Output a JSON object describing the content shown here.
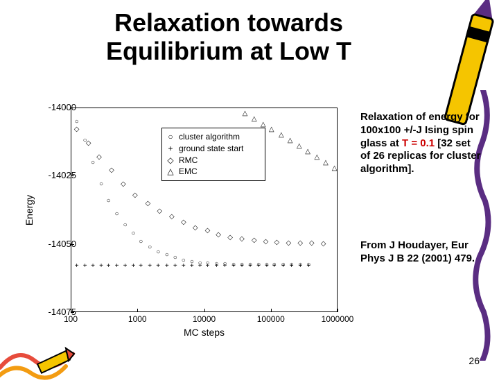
{
  "title": "Relaxation towards Equilibrium at Low T",
  "caption_parts": {
    "p1": "Relaxation of energy for 100x100 +/-J Ising spin glass at ",
    "hl": "T = 0.1",
    "p2": " [32 set of 26 replicas for cluster algorithm]."
  },
  "citation": "From J Houdayer, Eur Phys J B 22 (2001) 479.",
  "pagenum": "26",
  "chart": {
    "type": "scatter",
    "xlabel": "MC steps",
    "ylabel": "Energy",
    "x_scale": "log",
    "xlim": [
      100,
      1000000
    ],
    "ylim": [
      -14075,
      -14000
    ],
    "xticks": [
      100,
      1000,
      10000,
      100000,
      1000000
    ],
    "xtick_labels": [
      "100",
      "1000",
      "10000",
      "100000",
      "1000000"
    ],
    "yticks": [
      -14000,
      -14025,
      -14050,
      -14075
    ],
    "ytick_labels": [
      "-14000",
      "-14025",
      "-14050",
      "-14075"
    ],
    "background_color": "#ffffff",
    "axis_color": "#000000",
    "legend": {
      "position": "upper-center",
      "items": [
        {
          "symbol": "○",
          "label": "cluster algorithm"
        },
        {
          "symbol": "+",
          "label": "ground state start"
        },
        {
          "symbol": "◇",
          "label": "RMC"
        },
        {
          "symbol": "△",
          "label": "EMC"
        }
      ]
    },
    "series": [
      {
        "name": "cluster",
        "marker": "○",
        "points": [
          [
            120,
            -14005
          ],
          [
            160,
            -14012
          ],
          [
            210,
            -14020
          ],
          [
            280,
            -14028
          ],
          [
            360,
            -14034
          ],
          [
            480,
            -14039
          ],
          [
            640,
            -14043
          ],
          [
            850,
            -14046
          ],
          [
            1100,
            -14049
          ],
          [
            1500,
            -14051
          ],
          [
            2000,
            -14053
          ],
          [
            2700,
            -14054
          ],
          [
            3600,
            -14055
          ],
          [
            4800,
            -14056
          ],
          [
            6400,
            -14056.5
          ],
          [
            8500,
            -14057
          ],
          [
            11000,
            -14057
          ],
          [
            15000,
            -14057.2
          ],
          [
            20000,
            -14057.3
          ],
          [
            27000,
            -14057.4
          ],
          [
            36000,
            -14057.4
          ],
          [
            48000,
            -14057.5
          ],
          [
            64000,
            -14057.5
          ],
          [
            85000,
            -14057.5
          ],
          [
            110000,
            -14057.5
          ],
          [
            150000,
            -14057.5
          ],
          [
            200000,
            -14057.5
          ],
          [
            270000,
            -14057.5
          ],
          [
            360000,
            -14057.5
          ]
        ]
      },
      {
        "name": "ground_state_start",
        "marker": "+",
        "points": [
          [
            120,
            -14058
          ],
          [
            160,
            -14058
          ],
          [
            210,
            -14058
          ],
          [
            280,
            -14058
          ],
          [
            360,
            -14058
          ],
          [
            480,
            -14058
          ],
          [
            640,
            -14058
          ],
          [
            850,
            -14058
          ],
          [
            1100,
            -14058
          ],
          [
            1500,
            -14058
          ],
          [
            2000,
            -14058
          ],
          [
            2700,
            -14058
          ],
          [
            3600,
            -14058
          ],
          [
            4800,
            -14058
          ],
          [
            6400,
            -14058
          ],
          [
            8500,
            -14058
          ],
          [
            11000,
            -14058
          ],
          [
            15000,
            -14058
          ],
          [
            20000,
            -14058
          ],
          [
            27000,
            -14058
          ],
          [
            36000,
            -14058
          ],
          [
            48000,
            -14058
          ],
          [
            64000,
            -14058
          ],
          [
            85000,
            -14058
          ],
          [
            110000,
            -14058
          ],
          [
            150000,
            -14058
          ],
          [
            200000,
            -14058
          ],
          [
            270000,
            -14058
          ],
          [
            360000,
            -14058
          ]
        ]
      },
      {
        "name": "RMC",
        "marker": "◇",
        "points": [
          [
            120,
            -14008
          ],
          [
            180,
            -14013
          ],
          [
            260,
            -14018
          ],
          [
            400,
            -14023
          ],
          [
            600,
            -14028
          ],
          [
            900,
            -14032
          ],
          [
            1400,
            -14035
          ],
          [
            2100,
            -14038
          ],
          [
            3200,
            -14040
          ],
          [
            4800,
            -14042
          ],
          [
            7200,
            -14044
          ],
          [
            11000,
            -14045
          ],
          [
            16000,
            -14046.5
          ],
          [
            24000,
            -14047.5
          ],
          [
            36000,
            -14048
          ],
          [
            55000,
            -14048.5
          ],
          [
            82000,
            -14049
          ],
          [
            120000,
            -14049.3
          ],
          [
            180000,
            -14049.5
          ],
          [
            270000,
            -14049.6
          ],
          [
            400000,
            -14049.7
          ],
          [
            600000,
            -14049.8
          ]
        ]
      },
      {
        "name": "EMC",
        "marker": "△",
        "points": [
          [
            40000,
            -14002
          ],
          [
            55000,
            -14004
          ],
          [
            75000,
            -14006
          ],
          [
            100000,
            -14008
          ],
          [
            140000,
            -14010
          ],
          [
            190000,
            -14012
          ],
          [
            260000,
            -14014
          ],
          [
            350000,
            -14016
          ],
          [
            480000,
            -14018
          ],
          [
            650000,
            -14020
          ],
          [
            880000,
            -14022
          ]
        ]
      }
    ]
  },
  "decorations": {
    "crayon_colors": {
      "body": "#f5c500",
      "tip": "#5a2d82",
      "outline": "#000000"
    },
    "stroke_color": "#5a2d82",
    "bl_stroke_colors": [
      "#e74c3c",
      "#f39c12"
    ]
  }
}
